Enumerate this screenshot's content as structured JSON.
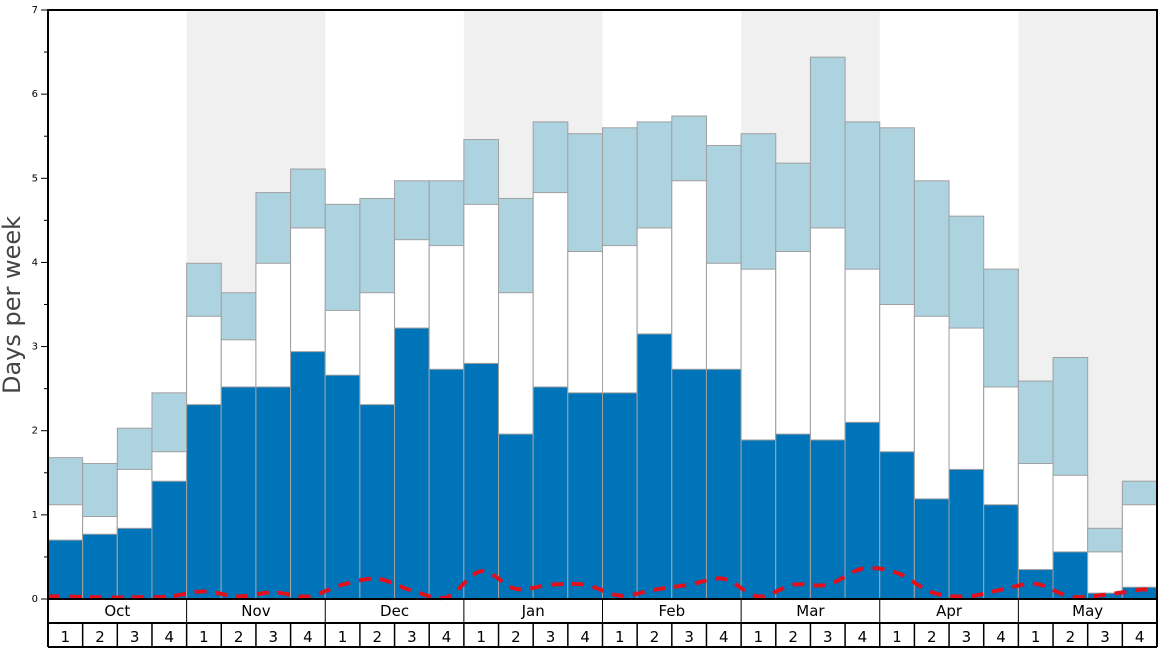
{
  "chart_data": {
    "type": "bar",
    "ylabel": "Days per week",
    "ylim": [
      0,
      7
    ],
    "yticks": [
      0,
      1,
      2,
      3,
      4,
      5,
      6,
      7
    ],
    "months": [
      "Oct",
      "Nov",
      "Dec",
      "Jan",
      "Feb",
      "Mar",
      "Apr",
      "May"
    ],
    "week_labels": [
      "1",
      "2",
      "3",
      "4"
    ],
    "colors": {
      "dark": "#0074b8",
      "middle": "#ffffff",
      "light": "#add3e0",
      "shade": "#f0f0f0",
      "line": "#e0101c",
      "bar_edge": "#a0a0a0"
    },
    "series": [
      {
        "values": [
          0.7,
          0.77,
          0.84,
          1.4,
          2.31,
          2.52,
          2.52,
          2.94,
          2.66,
          2.31,
          3.22,
          2.73,
          2.8,
          1.96,
          2.52,
          2.45,
          2.45,
          3.15,
          2.73,
          2.73,
          1.89,
          1.96,
          1.89,
          2.1,
          1.75,
          1.19,
          1.54,
          1.12,
          0.35,
          0.56,
          0.07,
          0.14
        ]
      },
      {
        "values": [
          1.12,
          0.98,
          1.54,
          1.75,
          3.36,
          3.08,
          3.99,
          4.41,
          3.43,
          3.64,
          4.27,
          4.2,
          4.69,
          3.64,
          4.83,
          4.13,
          4.2,
          4.41,
          4.97,
          3.99,
          3.92,
          4.13,
          4.41,
          3.92,
          3.5,
          3.36,
          3.22,
          2.52,
          1.61,
          1.47,
          0.56,
          1.12
        ]
      },
      {
        "values": [
          1.68,
          1.61,
          2.03,
          2.45,
          3.99,
          3.64,
          4.83,
          5.11,
          4.69,
          4.76,
          4.97,
          4.97,
          5.46,
          4.76,
          5.67,
          5.53,
          5.6,
          5.67,
          5.74,
          5.39,
          5.53,
          5.18,
          6.44,
          5.67,
          5.6,
          4.97,
          4.55,
          3.92,
          2.59,
          2.87,
          0.84,
          1.4
        ]
      },
      {
        "values": [
          0.03,
          0.02,
          0.02,
          0.03,
          0.09,
          0.03,
          0.08,
          0.03,
          0.17,
          0.24,
          0.1,
          0.02,
          0.33,
          0.12,
          0.17,
          0.17,
          0.04,
          0.11,
          0.17,
          0.24,
          0.03,
          0.17,
          0.17,
          0.36,
          0.31,
          0.08,
          0.03,
          0.11,
          0.18,
          0.03,
          0.05,
          0.11
        ]
      }
    ]
  }
}
